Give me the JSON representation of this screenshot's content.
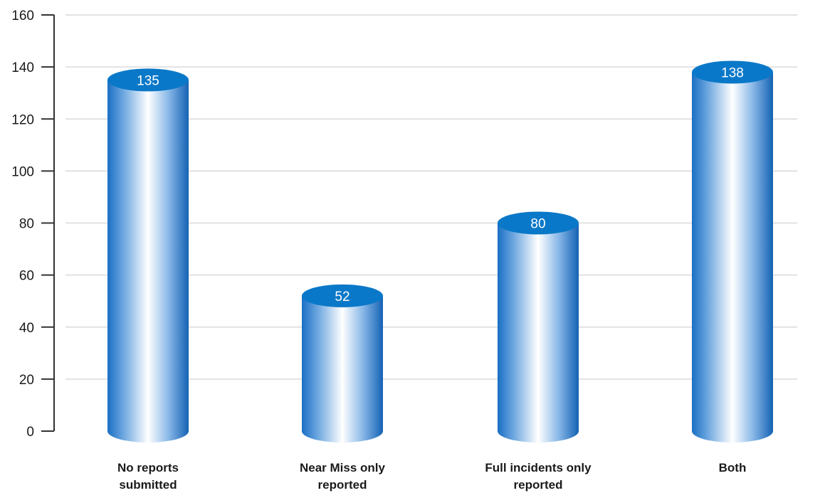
{
  "chart_data": {
    "type": "bar",
    "style": "3d-cylinder",
    "categories": [
      "No reports submitted",
      "Near Miss only reported",
      "Full incidents only reported",
      "Both"
    ],
    "values": [
      135,
      52,
      80,
      138
    ],
    "data_labels": [
      "135",
      "52",
      "80",
      "138"
    ],
    "title": "",
    "xlabel": "",
    "ylabel": "",
    "ylim": [
      0,
      160
    ],
    "yticks": [
      0,
      20,
      40,
      60,
      80,
      100,
      120,
      140,
      160
    ],
    "ytick_labels": [
      "0",
      "20",
      "40",
      "60",
      "80",
      "100",
      "120",
      "140",
      "160"
    ],
    "grid": true,
    "legend": "none",
    "colors": {
      "bar_edge": "#1a6fc4",
      "bar_highlight": "#ffffff",
      "bar_top": "#0a78c8",
      "grid": "#d9d9d9",
      "axis": "#333333"
    }
  }
}
